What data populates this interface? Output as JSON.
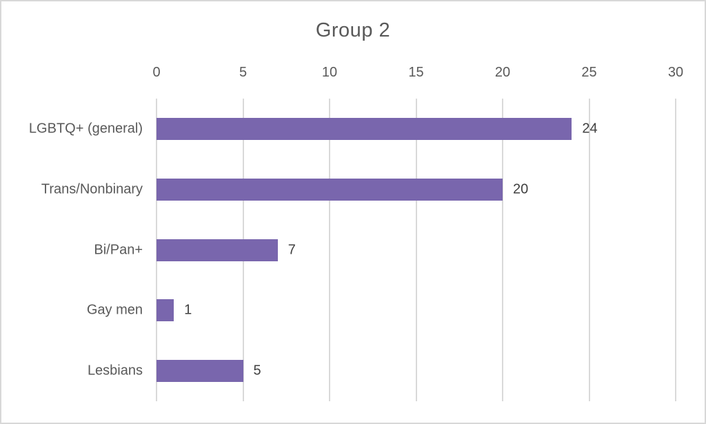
{
  "chart_data": {
    "type": "bar",
    "orientation": "horizontal",
    "title": "Group 2",
    "categories": [
      "LGBTQ+ (general)",
      "Trans/Nonbinary",
      "Bi/Pan+",
      "Gay men",
      "Lesbians"
    ],
    "values": [
      24,
      20,
      7,
      1,
      5
    ],
    "data_labels": [
      "24",
      "20",
      "7",
      "1",
      "5"
    ],
    "xlabel": "",
    "ylabel": "",
    "xlim": [
      0,
      30
    ],
    "x_ticks": [
      0,
      5,
      10,
      15,
      20,
      25,
      30
    ],
    "tick_side": "top",
    "grid": true,
    "legend": "none",
    "bar_color": "#7966AD",
    "gridline_color": "#d9d9d9",
    "frame_color": "#d8d8d8",
    "title_color": "#595959",
    "axis_text_color": "#595959",
    "data_label_color": "#404040"
  }
}
